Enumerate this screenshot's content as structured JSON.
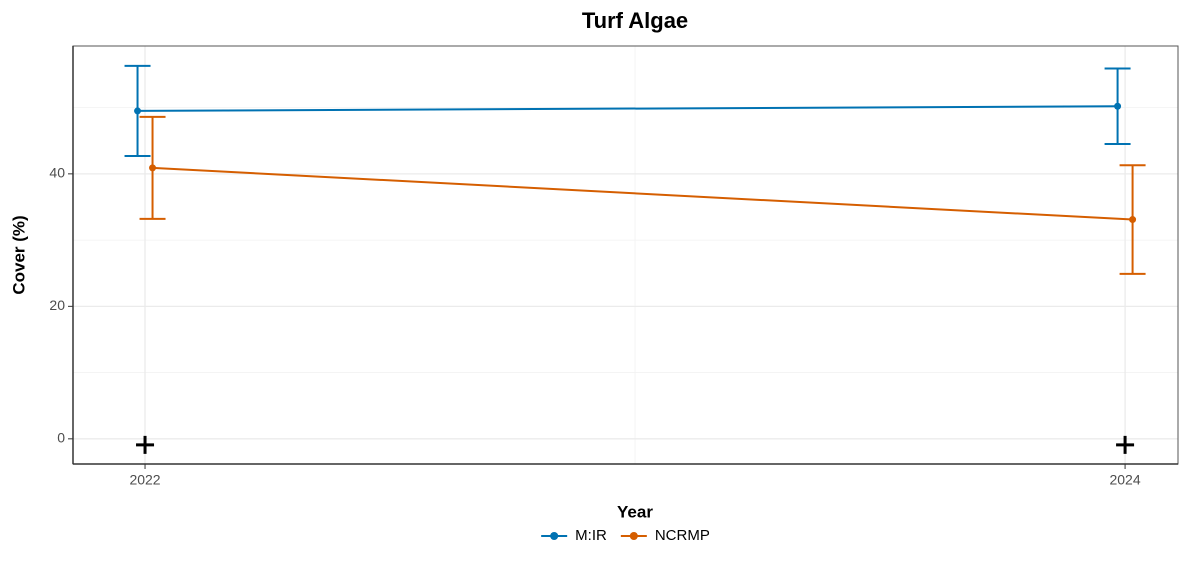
{
  "chart_data": {
    "type": "line",
    "title": "Turf Algae",
    "x_label": "Year",
    "y_label": "Cover (%)",
    "x": [
      2022,
      2024
    ],
    "series": [
      {
        "name": "M:IR",
        "color": "#0072B2",
        "values": [
          49.5,
          50.2
        ],
        "errors": [
          6.8,
          5.7
        ]
      },
      {
        "name": "NCRMP",
        "color": "#D55E00",
        "values": [
          40.9,
          33.1
        ],
        "errors": [
          7.7,
          8.2
        ]
      }
    ],
    "plus_markers": {
      "x": [
        2022,
        2024
      ],
      "y": [
        0,
        0
      ]
    },
    "xlim": [
      2021.853,
      2024.108
    ],
    "xticks": [
      2022,
      2024
    ],
    "x_minor_ticks": [
      2023
    ],
    "ylim": [
      -3.8,
      59.3
    ],
    "yticks": [
      0,
      20,
      40
    ],
    "y_minor_ticks": [
      10,
      30,
      50
    ],
    "grid": true,
    "legend": "bottom"
  }
}
